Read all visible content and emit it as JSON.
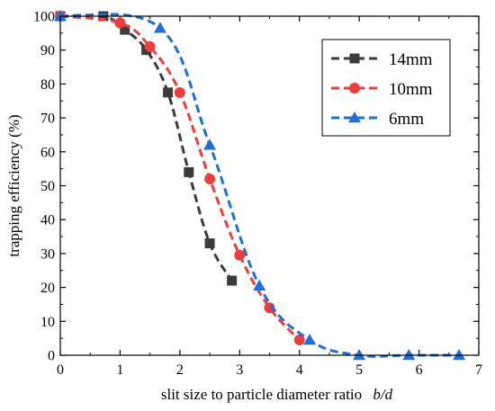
{
  "chart_data": {
    "type": "line",
    "title": "",
    "xlabel": "slit size to particle diameter ratio",
    "xlabel_italic": "b/d",
    "ylabel": "trapping efficiency (%)",
    "xlim": [
      0,
      7
    ],
    "ylim": [
      0,
      100
    ],
    "xticks": [
      "0",
      "1",
      "2",
      "3",
      "4",
      "5",
      "6",
      "7"
    ],
    "yticks": [
      "0",
      "10",
      "20",
      "30",
      "40",
      "50",
      "60",
      "70",
      "80",
      "90",
      "100"
    ],
    "grid": false,
    "legend_position": "top-right",
    "series": [
      {
        "name": "14mm",
        "color": "#3c3c3c",
        "marker": "square",
        "x": [
          0,
          0.72,
          1.08,
          1.44,
          1.8,
          2.15,
          2.5,
          2.87
        ],
        "y": [
          100,
          100,
          96,
          90,
          77.5,
          54,
          33,
          22
        ]
      },
      {
        "name": "10mm",
        "color": "#ee3d3d",
        "marker": "circle",
        "x": [
          0,
          1.0,
          1.5,
          2.0,
          2.5,
          3.0,
          3.5,
          4.0
        ],
        "y": [
          100,
          98,
          91,
          77.5,
          52,
          29.5,
          14,
          4.5
        ]
      },
      {
        "name": "6mm",
        "color": "#1f6fd6",
        "marker": "triangle",
        "x": [
          0,
          1.67,
          2.5,
          3.33,
          4.17,
          5.0,
          5.83,
          6.67
        ],
        "y": [
          100,
          96.5,
          62,
          20.5,
          4.5,
          0,
          0,
          0
        ]
      }
    ]
  }
}
